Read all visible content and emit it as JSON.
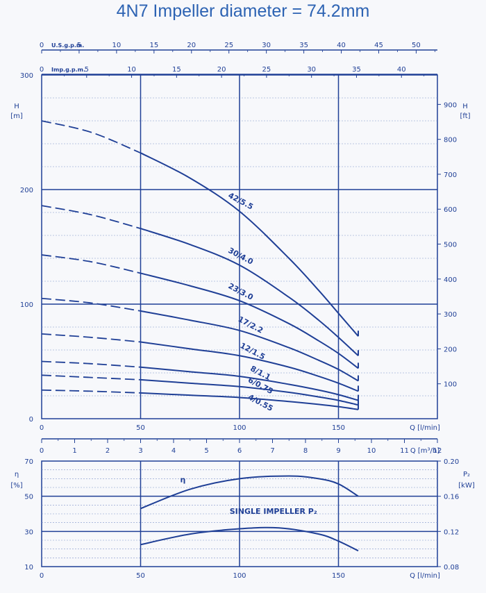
{
  "page": {
    "title": "4N7 Impeller diameter = 74.2mm"
  },
  "colors": {
    "ink": "#1f3f96",
    "grid_minor": "#7f93c9",
    "background": "#f7f8fb"
  },
  "chart_data": [
    {
      "type": "line",
      "name": "head",
      "x_label": "Q [l/min]",
      "x_range": [
        0,
        200
      ],
      "x_ticks": [
        0,
        50,
        100,
        150
      ],
      "y_left_label": [
        "H",
        "[m]"
      ],
      "y_left_range": [
        0,
        300
      ],
      "y_left_ticks": [
        0,
        100,
        200,
        300
      ],
      "y_right_label": [
        "H",
        "[ft]"
      ],
      "y_right_ticks": [
        100,
        200,
        300,
        400,
        500,
        600,
        700,
        800,
        900
      ],
      "top_scales": [
        {
          "label": "U.S.g.p.m.",
          "ticks": [
            0,
            5,
            10,
            15,
            20,
            25,
            30,
            35,
            40,
            45,
            50
          ],
          "per_lmin": 0.26417
        },
        {
          "label": "Imp.g.p.m.",
          "ticks": [
            0,
            5,
            10,
            15,
            20,
            25,
            30,
            35,
            40
          ],
          "per_lmin": 0.21997
        }
      ],
      "bottom_scale": {
        "label": "Q [m³/h]",
        "ticks": [
          0,
          1,
          2,
          3,
          4,
          5,
          6,
          7,
          8,
          9,
          10,
          11,
          12
        ],
        "per_lmin": 0.06
      },
      "series": [
        {
          "name": "42/5.5",
          "x": [
            0,
            25,
            50,
            75,
            100,
            125,
            140,
            150,
            160
          ],
          "y": [
            260,
            250,
            232,
            210,
            181,
            140,
            112,
            92,
            72
          ],
          "dashed_until": 50,
          "label_at": [
            100,
            188
          ]
        },
        {
          "name": "30/4.0",
          "x": [
            0,
            25,
            50,
            75,
            100,
            125,
            140,
            150,
            160
          ],
          "y": [
            186,
            178,
            166,
            152,
            134,
            106,
            86,
            71,
            55
          ],
          "dashed_until": 50,
          "label_at": [
            100,
            140
          ]
        },
        {
          "name": "23/3.0",
          "x": [
            0,
            25,
            50,
            75,
            100,
            125,
            140,
            150,
            160
          ],
          "y": [
            143,
            137,
            127,
            116,
            103,
            83,
            68,
            57,
            44
          ],
          "dashed_until": 50,
          "label_at": [
            100,
            109
          ]
        },
        {
          "name": "17/2.2",
          "x": [
            0,
            25,
            50,
            75,
            100,
            125,
            140,
            150,
            160
          ],
          "y": [
            105,
            101,
            94,
            86,
            77,
            62,
            51,
            43,
            33
          ],
          "dashed_until": 50,
          "label_at": [
            105,
            80
          ]
        },
        {
          "name": "12/1.5",
          "x": [
            0,
            25,
            50,
            75,
            100,
            125,
            140,
            150,
            160
          ],
          "y": [
            74,
            71,
            67,
            61,
            55,
            45,
            37,
            31,
            24
          ],
          "dashed_until": 50,
          "label_at": [
            106,
            57
          ]
        },
        {
          "name": "8/1.1",
          "x": [
            0,
            25,
            50,
            75,
            100,
            125,
            140,
            150,
            160
          ],
          "y": [
            50,
            48,
            45,
            41,
            37,
            30,
            25,
            21,
            16
          ],
          "dashed_until": 50,
          "label_at": [
            110,
            38
          ]
        },
        {
          "name": "6/0.75",
          "x": [
            0,
            25,
            50,
            75,
            100,
            125,
            140,
            150,
            160
          ],
          "y": [
            38,
            36,
            34,
            31,
            28,
            23,
            19,
            16,
            12
          ],
          "dashed_until": 50,
          "label_at": [
            110,
            27
          ]
        },
        {
          "name": "4/0.55",
          "x": [
            0,
            25,
            50,
            75,
            100,
            125,
            140,
            150,
            160
          ],
          "y": [
            25,
            24,
            22.5,
            20.5,
            18.5,
            15,
            12.5,
            10.5,
            8
          ],
          "dashed_until": 50,
          "label_at": [
            110,
            12
          ]
        }
      ]
    },
    {
      "type": "line",
      "name": "efficiency_power",
      "x_label": "Q [l/min]",
      "x_range": [
        0,
        200
      ],
      "x_ticks": [
        0,
        50,
        100,
        150
      ],
      "y_left_label": [
        "η",
        "[%]"
      ],
      "y_left_range": [
        10,
        70
      ],
      "y_left_ticks": [
        10,
        30,
        50,
        70
      ],
      "y_right_label": [
        "P₂",
        "[kW]"
      ],
      "y_right_ticks": [
        "0.08",
        "0.12",
        "0.16",
        "0.20"
      ],
      "series": [
        {
          "name": "η",
          "axis": "left",
          "x": [
            50,
            75,
            100,
            125,
            140,
            150,
            160
          ],
          "y": [
            43,
            54,
            60,
            61.5,
            60,
            57,
            50
          ],
          "label_at": [
            70,
            58
          ]
        },
        {
          "name": "SINGLE IMPELLER P₂",
          "axis": "left",
          "x": [
            50,
            75,
            100,
            120,
            140,
            150,
            160
          ],
          "y": [
            22.5,
            28.5,
            31.5,
            32,
            28.5,
            24.5,
            19
          ],
          "label_at": [
            95,
            40
          ]
        }
      ]
    }
  ]
}
